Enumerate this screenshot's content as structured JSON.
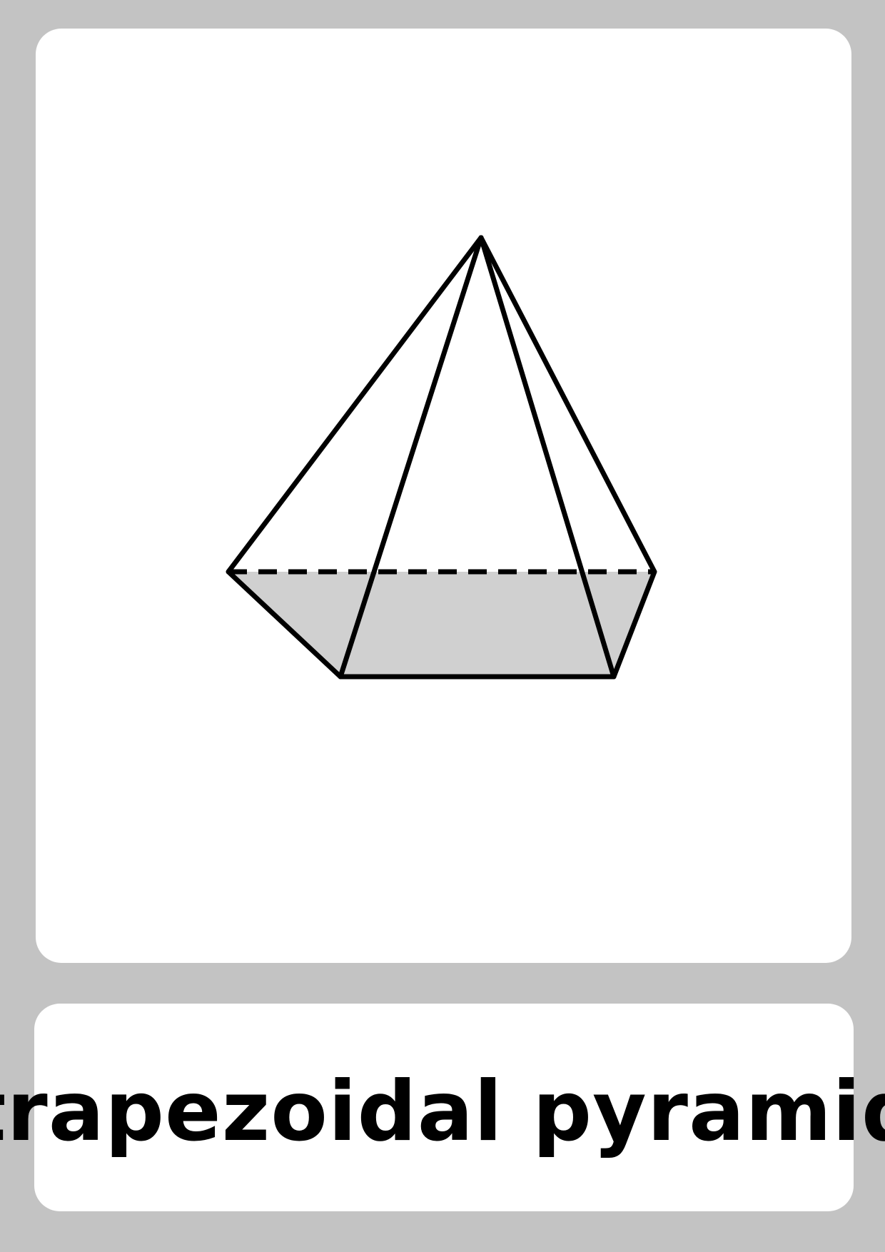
{
  "flashcard": {
    "label": "trapezoidal pyramid",
    "illustration": {
      "shape": "trapezoidal-pyramid",
      "fill_color": "#d0d0d0",
      "stroke_color": "#000000"
    }
  },
  "colors": {
    "page_background": "#c3c3c3",
    "card_background": "#ffffff",
    "text": "#000000"
  }
}
